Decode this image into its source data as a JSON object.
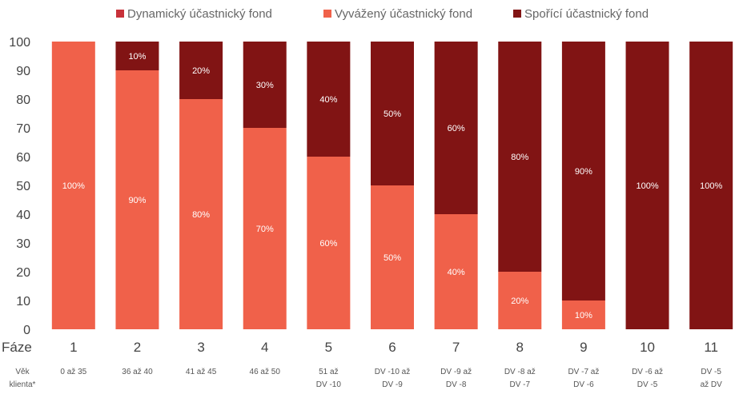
{
  "chart_data": {
    "type": "bar",
    "stacked": true,
    "ylim": [
      0,
      100
    ],
    "yticks": [
      0,
      10,
      20,
      30,
      40,
      50,
      60,
      70,
      80,
      90,
      100
    ],
    "grid": false,
    "legend_position": "top",
    "x_axis_title": "Fáze",
    "age_row_title": "Věk klienta*",
    "categories": [
      "1",
      "2",
      "3",
      "4",
      "5",
      "6",
      "7",
      "8",
      "9",
      "10",
      "11"
    ],
    "age_labels": [
      "0 až 35",
      "36 až 40",
      "41 až 45",
      "46 až 50",
      "51 až DV -10",
      "DV -10 až DV -9",
      "DV -9 až DV -8",
      "DV -8 až DV -7",
      "DV -7 až DV -6",
      "DV -6 až DV -5",
      "DV -5 až DV"
    ],
    "series": [
      {
        "name": "Dynamický účastnický fond",
        "color": "#c8323a",
        "values": [
          0,
          0,
          0,
          0,
          0,
          0,
          0,
          0,
          0,
          0,
          0
        ],
        "labels": [
          "",
          "",
          "",
          "",
          "",
          "",
          "",
          "",
          "",
          "",
          ""
        ]
      },
      {
        "name": "Vyvážený účastnický fond",
        "color": "#f0614a",
        "values": [
          100,
          90,
          80,
          70,
          60,
          50,
          40,
          20,
          10,
          0,
          0
        ],
        "labels": [
          "100%",
          "90%",
          "80%",
          "70%",
          "60%",
          "50%",
          "40%",
          "20%",
          "10%",
          "",
          ""
        ]
      },
      {
        "name": "Spořící účastnický fond",
        "color": "#811414",
        "values": [
          0,
          10,
          20,
          30,
          40,
          50,
          60,
          80,
          90,
          100,
          100
        ],
        "labels": [
          "",
          "10%",
          "20%",
          "30%",
          "40%",
          "50%",
          "60%",
          "80%",
          "90%",
          "100%",
          "100%"
        ]
      }
    ]
  }
}
